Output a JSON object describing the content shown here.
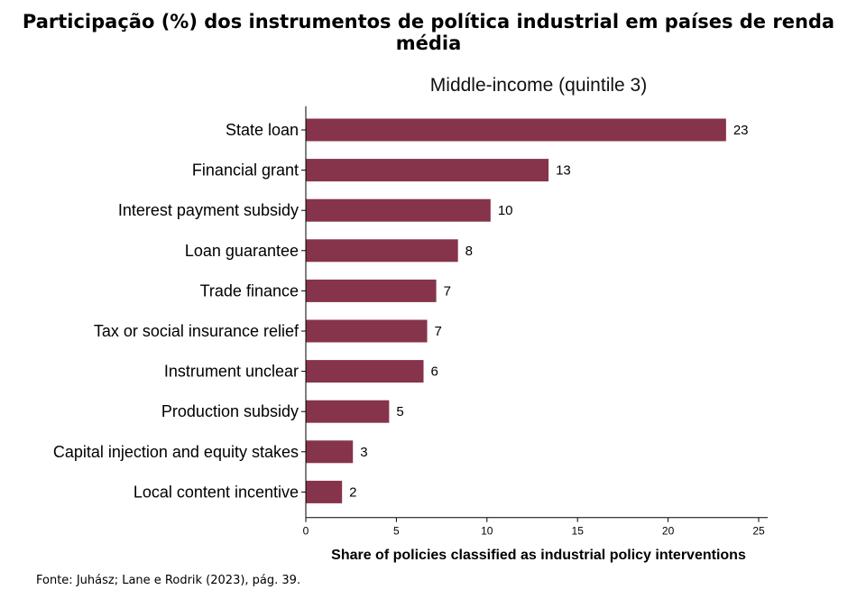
{
  "header": {
    "title": "Participação (%) dos instrumentos de política industrial em países de renda média"
  },
  "footer": {
    "source": "Fonte: Juhász; Lane e Rodrik (2023), pág. 39."
  },
  "chart_data": {
    "type": "bar",
    "orientation": "horizontal",
    "title": "Middle-income (quintile 3)",
    "xlabel": "Share of policies classified as industrial policy interventions",
    "ylabel": "",
    "categories": [
      "State loan",
      "Financial grant",
      "Interest payment subsidy",
      "Loan guarantee",
      "Trade finance",
      "Tax or social insurance relief",
      "Instrument unclear",
      "Production subsidy",
      "Capital injection and equity stakes",
      "Local content incentive"
    ],
    "values": [
      23.2,
      13.4,
      10.2,
      8.4,
      7.2,
      6.7,
      6.5,
      4.6,
      2.6,
      2.0
    ],
    "data_labels": [
      "23",
      "13",
      "10",
      "8",
      "7",
      "7",
      "6",
      "5",
      "3",
      "2"
    ],
    "xlim": [
      0,
      25.5
    ],
    "xticks": [
      0,
      5,
      10,
      15,
      20,
      25
    ],
    "grid": false,
    "bar_color": "#86344b"
  }
}
